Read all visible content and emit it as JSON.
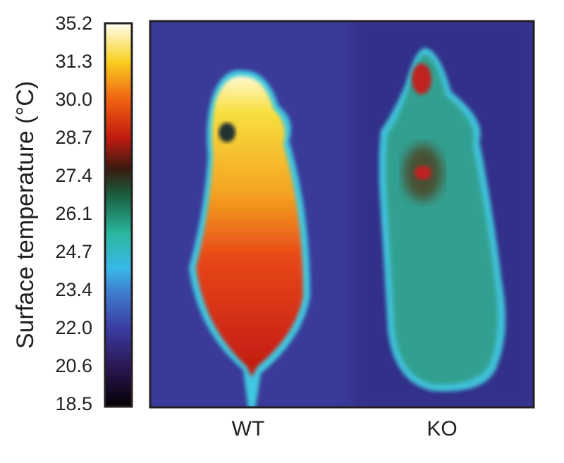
{
  "colorbar": {
    "label": "Surface temperature (°C)",
    "ticks": [
      "35.2",
      "31.3",
      "30.0",
      "28.7",
      "27.4",
      "26.1",
      "24.7",
      "23.4",
      "22.0",
      "20.6",
      "18.5"
    ]
  },
  "panels": [
    {
      "label": "WT"
    },
    {
      "label": "KO"
    }
  ]
}
